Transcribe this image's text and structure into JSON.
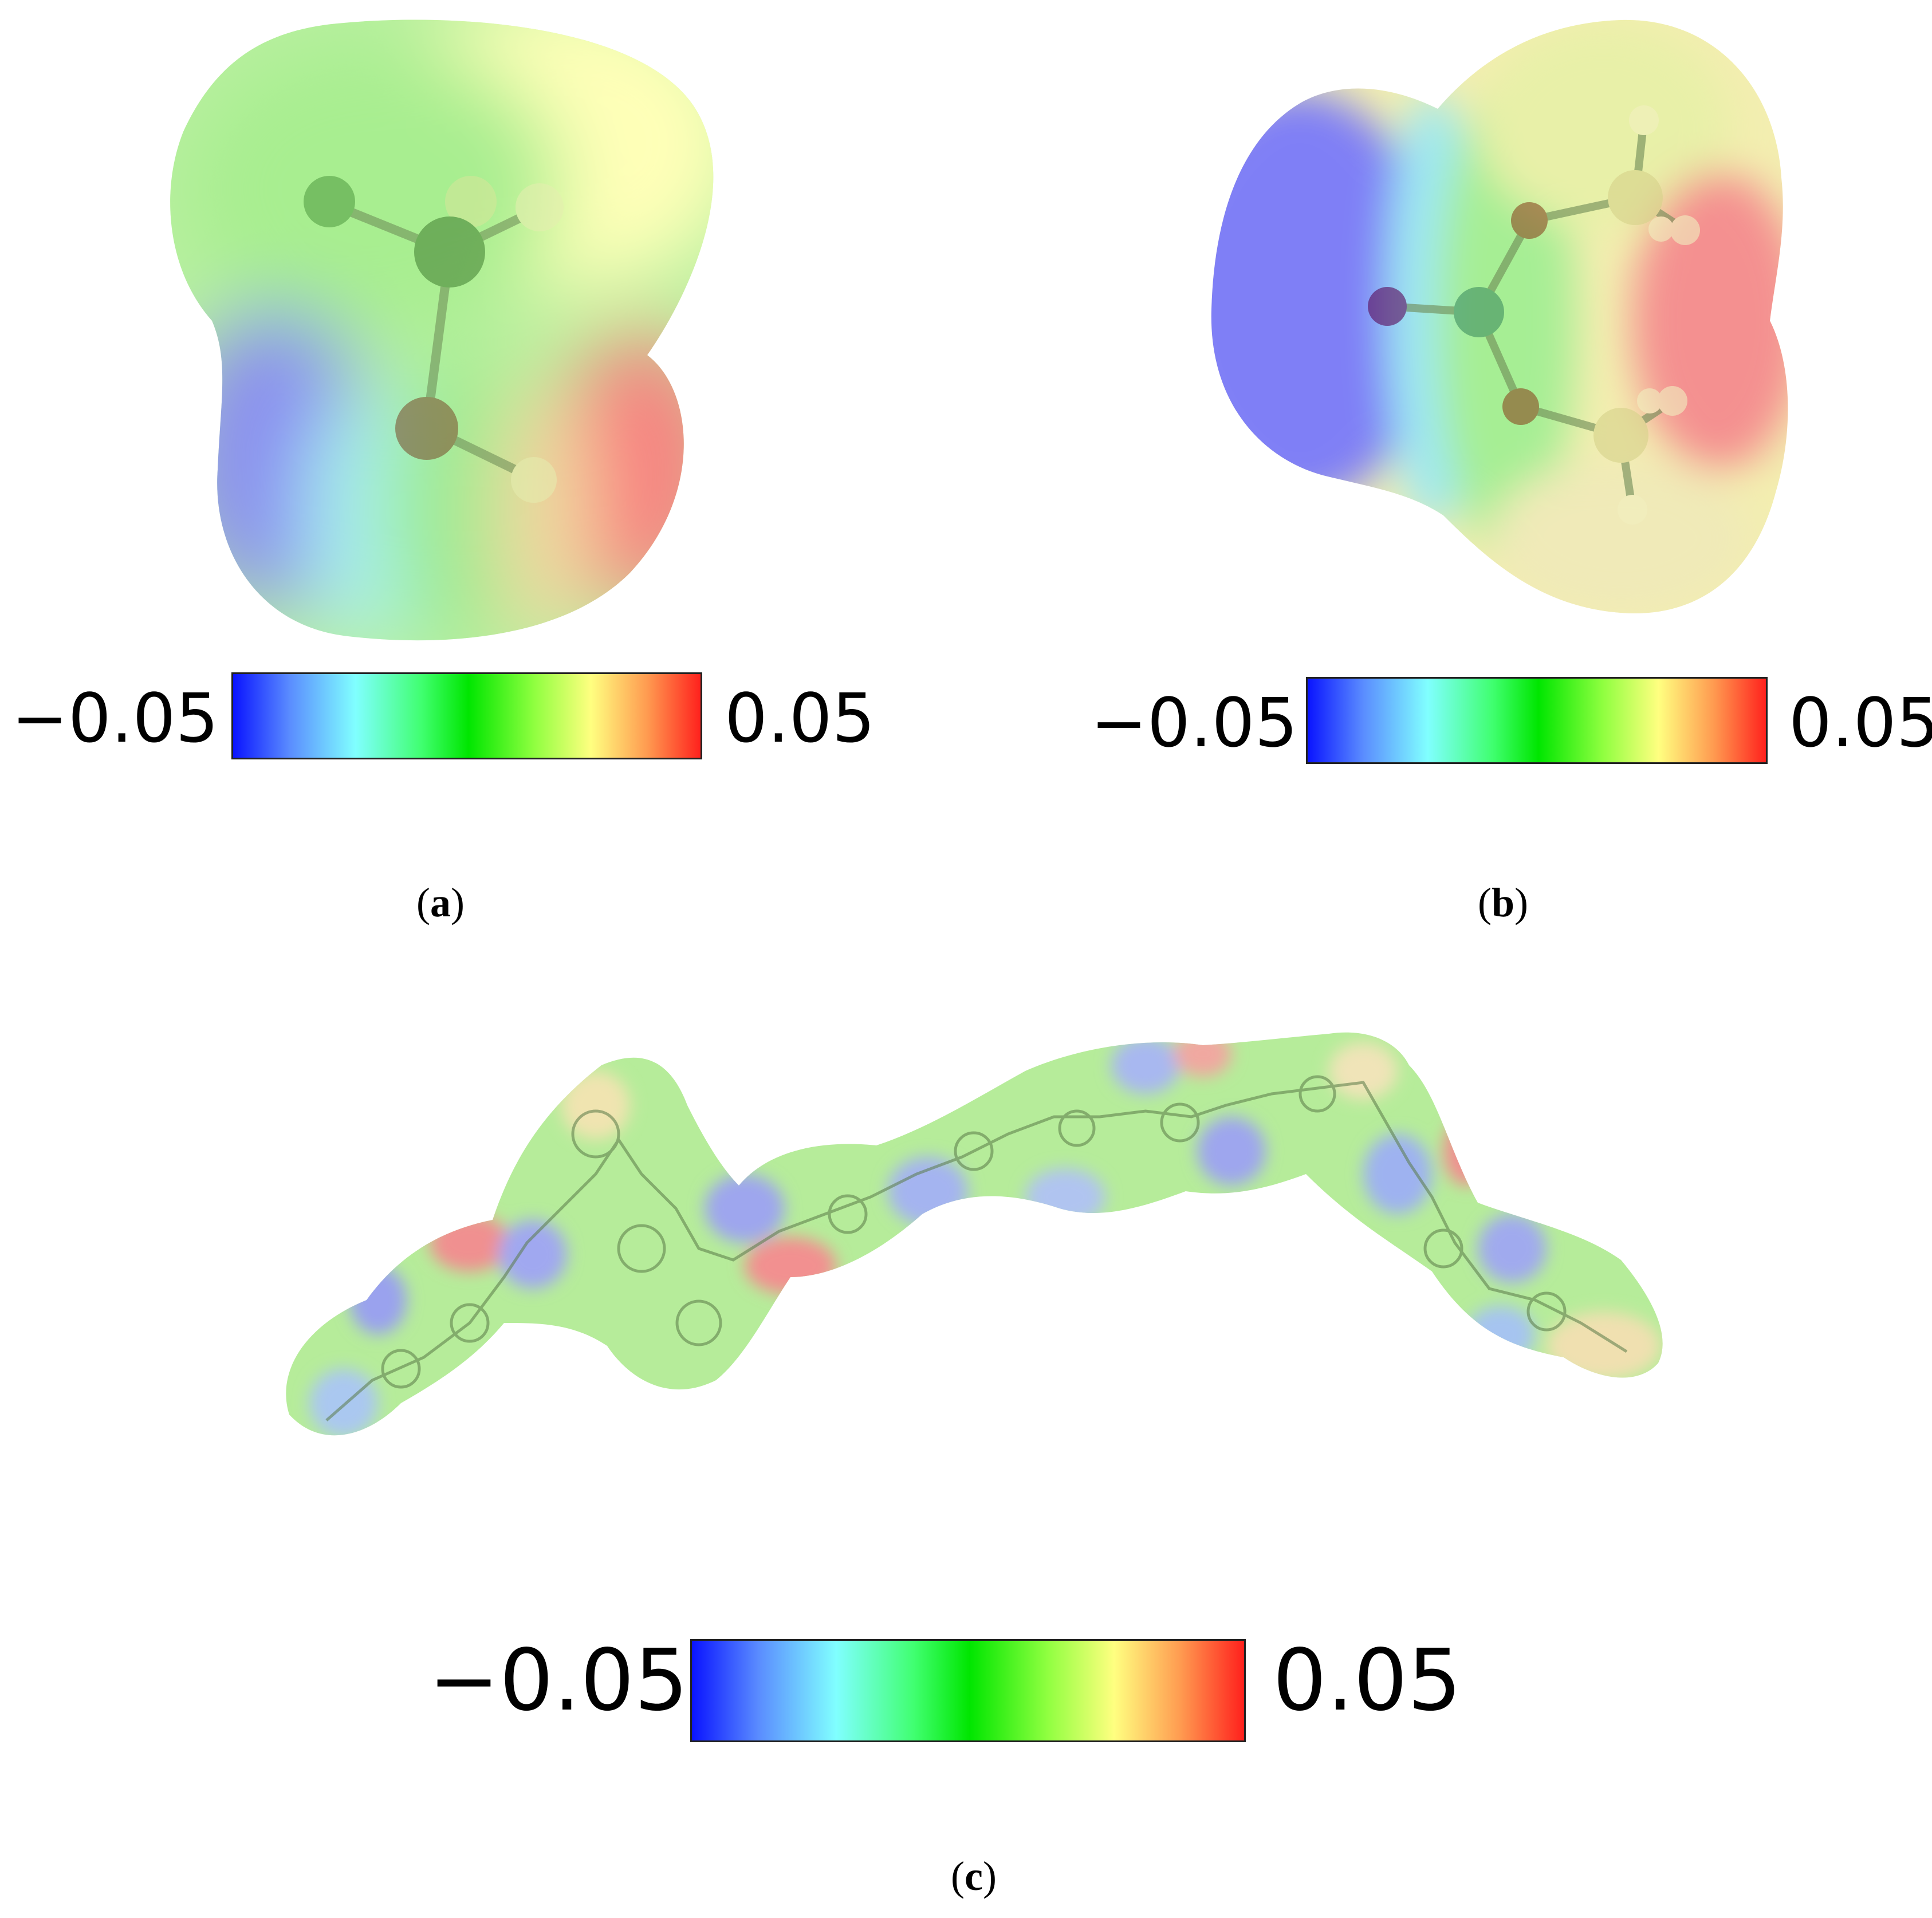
{
  "colorbar": {
    "min_label": "−0.05",
    "max_label": "0.05",
    "gradient_colors": [
      "#0a14ff",
      "#6aa8ff",
      "#80ffff",
      "#40ff70",
      "#00e600",
      "#90ff40",
      "#ffff80",
      "#ff9a50",
      "#ff1a1a"
    ]
  },
  "panels": [
    {
      "id": "a",
      "caption_open": "(",
      "caption_letter": "a",
      "caption_close": ")"
    },
    {
      "id": "b",
      "caption_open": "(",
      "caption_letter": "b",
      "caption_close": ")"
    },
    {
      "id": "c",
      "caption_open": "(",
      "caption_letter": "c",
      "caption_close": ")"
    }
  ]
}
